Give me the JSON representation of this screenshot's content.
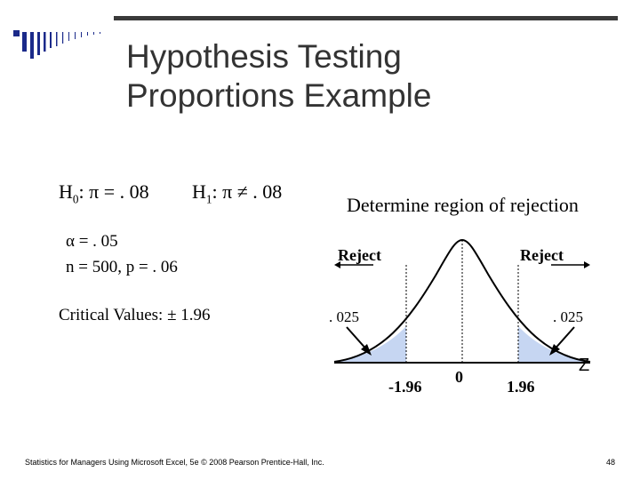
{
  "slide": {
    "title_line1": "Hypothesis Testing",
    "title_line2": "Proportions Example",
    "h0_label": "H",
    "h0_sub": "0",
    "h0_rest": ": π = . 08",
    "h1_label": "H",
    "h1_sub": "1",
    "h1_rest": ": π ≠ . 08",
    "alpha": "α = . 05",
    "n_p": "n = 500,   p = . 06",
    "critical": "Critical Values: ± 1.96",
    "region_title": "Determine region of rejection",
    "reject_left": "Reject",
    "reject_right": "Reject",
    "tail_left": ". 025",
    "tail_right": ". 025",
    "tick_neg": "-1.96",
    "tick_zero": "0",
    "tick_pos": "1.96",
    "axis_var": "Z",
    "footer": "Statistics for Managers Using Microsoft Excel, 5e © 2008 Pearson Prentice-Hall, Inc.",
    "page_number": "48"
  },
  "colors": {
    "tail_fill": "#c6d6f2",
    "title": "#333333"
  }
}
